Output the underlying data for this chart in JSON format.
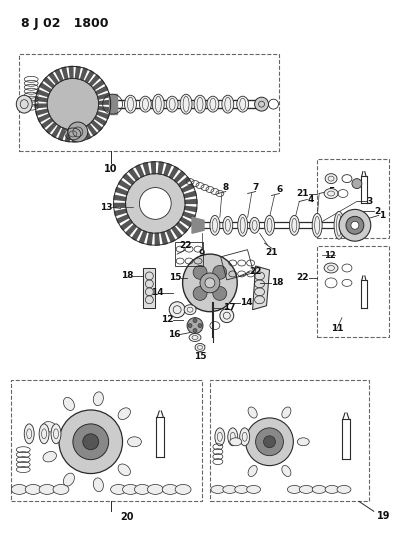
{
  "title": "8 J 02   1800",
  "bg": "#ffffff",
  "lc": "#2a2a2a",
  "tc": "#111111",
  "bc": "#666666",
  "figsize": [
    3.97,
    5.33
  ],
  "dpi": 100
}
